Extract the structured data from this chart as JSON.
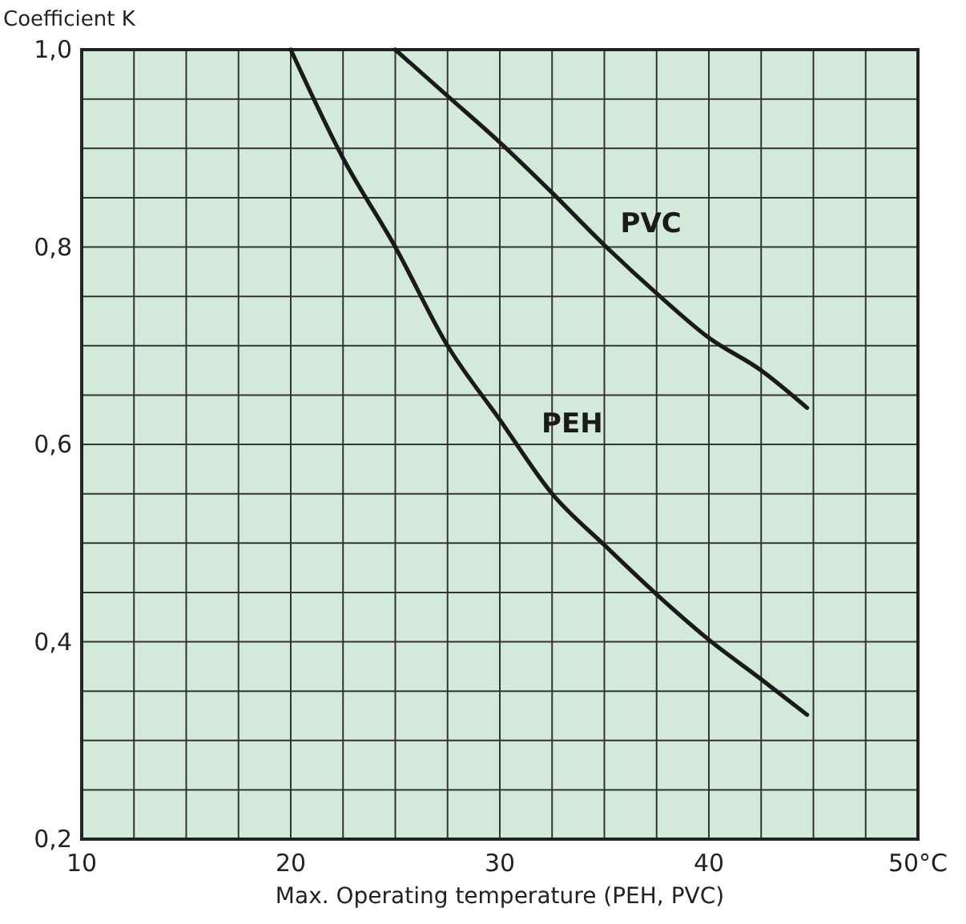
{
  "chart_data": {
    "type": "line",
    "xlabel": "Max. Operating temperature (PEH, PVC)",
    "ylabel": "Coefficient K",
    "xlim": [
      10,
      50
    ],
    "ylim": [
      0.2,
      1.0
    ],
    "xticks": [
      10,
      20,
      30,
      40,
      {
        "value": 50,
        "label": "50°C"
      }
    ],
    "yticks": [
      {
        "value": 0.2,
        "label": "0,2"
      },
      {
        "value": 0.4,
        "label": "0,4"
      },
      {
        "value": 0.6,
        "label": "0,6"
      },
      {
        "value": 0.8,
        "label": "0,8"
      },
      {
        "value": 1.0,
        "label": "1,0"
      }
    ],
    "grid": true,
    "marker": "none",
    "line_style": "solid",
    "series": [
      {
        "name": "PVC",
        "color": "#1a1a1a",
        "x": [
          25,
          27.5,
          30,
          32.5,
          35,
          37.5,
          40,
          42.5,
          44.7
        ],
        "values": [
          1.0,
          0.953,
          0.906,
          0.855,
          0.802,
          0.753,
          0.708,
          0.675,
          0.637
        ]
      },
      {
        "name": "PEH",
        "color": "#1a1a1a",
        "x": [
          20,
          22.5,
          25,
          27.5,
          30,
          32.5,
          35,
          37.5,
          40,
          42.5,
          44.7
        ],
        "values": [
          1.0,
          0.89,
          0.8,
          0.7,
          0.625,
          0.55,
          0.498,
          0.448,
          0.402,
          0.362,
          0.326
        ]
      }
    ]
  }
}
